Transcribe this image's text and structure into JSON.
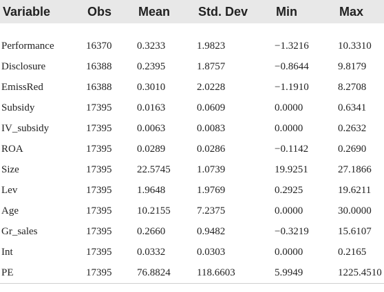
{
  "table": {
    "headers": [
      "Variable",
      "Obs",
      "Mean",
      "Std. Dev",
      "Min",
      "Max"
    ],
    "rows": [
      [
        "Performance",
        "16370",
        "0.3233",
        "1.9823",
        "−1.3216",
        "10.3310"
      ],
      [
        "Disclosure",
        "16388",
        "0.2395",
        "1.8757",
        "−0.8644",
        "9.8179"
      ],
      [
        "EmissRed",
        "16388",
        "0.3010",
        "2.0228",
        "−1.1910",
        "8.2708"
      ],
      [
        "Subsidy",
        "17395",
        "0.0163",
        "0.0609",
        "0.0000",
        "0.6341"
      ],
      [
        "IV_subsidy",
        "17395",
        "0.0063",
        "0.0083",
        "0.0000",
        "0.2632"
      ],
      [
        "ROA",
        "17395",
        "0.0289",
        "0.0286",
        "−0.1142",
        "0.2690"
      ],
      [
        "Size",
        "17395",
        "22.5745",
        "1.0739",
        "19.9251",
        "27.1866"
      ],
      [
        "Lev",
        "17395",
        "1.9648",
        "1.9769",
        "0.2925",
        "19.6211"
      ],
      [
        "Age",
        "17395",
        "10.2155",
        "7.2375",
        "0.0000",
        "30.0000"
      ],
      [
        "Gr_sales",
        "17395",
        "0.2660",
        "0.9482",
        "−0.3219",
        "15.6107"
      ],
      [
        "Int",
        "17395",
        "0.0332",
        "0.0303",
        "0.0000",
        "0.2165"
      ],
      [
        "PE",
        "17395",
        "76.8824",
        "118.6603",
        "5.9949",
        "1225.4510"
      ]
    ]
  },
  "colors": {
    "header_background": "#e8e8e8",
    "text": "#222222",
    "rule": "#cfcfcf"
  }
}
